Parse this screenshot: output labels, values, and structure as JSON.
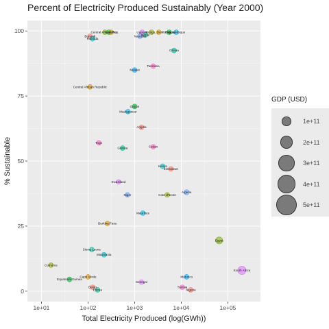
{
  "chart_data": {
    "type": "scatter",
    "title": "Percent of Electricity Produced Sustainably (Year 2000)",
    "xlabel": "Total Electricity Produced (log(GWh))",
    "ylabel": "% Sustainable",
    "x_scale": "log10",
    "xlim": [
      5,
      500000
    ],
    "ylim": [
      -4,
      104
    ],
    "x_ticks": [
      10,
      100,
      1000,
      10000,
      100000
    ],
    "x_tick_labels": [
      "1e+01",
      "1e+02",
      "1e+03",
      "1e+04",
      "1e+05"
    ],
    "y_ticks": [
      0,
      25,
      50,
      75,
      100
    ],
    "y_tick_labels": [
      "0",
      "25",
      "50",
      "75",
      "100"
    ],
    "legend": {
      "title": "GDP (USD)",
      "position": "right",
      "items": [
        {
          "label": "1e+11",
          "value": 100000000000
        },
        {
          "label": "2e+11",
          "value": 200000000000
        },
        {
          "label": "3e+11",
          "value": 300000000000
        },
        {
          "label": "4e+11",
          "value": 400000000000
        },
        {
          "label": "5e+11",
          "value": 500000000000
        }
      ]
    },
    "points": [
      {
        "label": "Burundi",
        "x": 110,
        "y": 98,
        "gdp": 1000000000,
        "color": "#F8766D"
      },
      {
        "label": "Rwanda",
        "x": 125,
        "y": 97,
        "gdp": 1800000000,
        "color": "#00BFC4"
      },
      {
        "label": "Central African Rep.",
        "x": 230,
        "y": 99.5,
        "gdp": 900000000,
        "color": "#7CAE00"
      },
      {
        "label": "",
        "x": 280,
        "y": 99.5,
        "gdp": 3000000000,
        "color": "#00BA38"
      },
      {
        "label": "Lesotho",
        "x": 310,
        "y": 99.5,
        "gdp": 1200000000,
        "color": "#D39200"
      },
      {
        "label": "Uganda",
        "x": 1450,
        "y": 99.5,
        "gdp": 6000000000,
        "color": "#DB72FB"
      },
      {
        "label": "Nepal",
        "x": 1700,
        "y": 98.5,
        "gdp": 5500000000,
        "color": "#00C19F"
      },
      {
        "label": "Namibia",
        "x": 1300,
        "y": 98,
        "gdp": 3500000000,
        "color": "#619CFF"
      },
      {
        "label": "",
        "x": 2300,
        "y": 99.5,
        "gdp": 30000000000,
        "color": "#93AA00"
      },
      {
        "label": "Congo, Dem. Rep.",
        "x": 3300,
        "y": 99.5,
        "gdp": 20000000000,
        "color": "#D39200"
      },
      {
        "label": "Paraguay",
        "x": 5500,
        "y": 99.5,
        "gdp": 8000000000,
        "color": "#00BA38"
      },
      {
        "label": "Mozambique",
        "x": 7800,
        "y": 99.5,
        "gdp": 6000000000,
        "color": "#00B9E3"
      },
      {
        "label": "Ghana",
        "x": 7000,
        "y": 92.5,
        "gdp": 25000000000,
        "color": "#00C19F"
      },
      {
        "label": "Tanzania",
        "x": 2500,
        "y": 86.5,
        "gdp": 15000000000,
        "color": "#FF61C3"
      },
      {
        "label": "Malawi",
        "x": 1000,
        "y": 85,
        "gdp": 2000000000,
        "color": "#00A9FF"
      },
      {
        "label": "Central African Republic",
        "x": 110,
        "y": 78.5,
        "gdp": 900000000,
        "color": "#D39200"
      },
      {
        "label": "Gabon",
        "x": 1000,
        "y": 71,
        "gdp": 5000000000,
        "color": "#00BA38"
      },
      {
        "label": "Madagascar",
        "x": 720,
        "y": 69,
        "gdp": 4000000000,
        "color": "#00B9E3"
      },
      {
        "label": "Angola",
        "x": 1400,
        "y": 63,
        "gdp": 9000000000,
        "color": "#F8766D"
      },
      {
        "label": "Togo",
        "x": 170,
        "y": 57,
        "gdp": 1500000000,
        "color": "#FF61C3"
      },
      {
        "label": "Guinea",
        "x": 550,
        "y": 55,
        "gdp": 3000000000,
        "color": "#00C08B"
      },
      {
        "label": "Sudan",
        "x": 2500,
        "y": 55.5,
        "gdp": 12000000000,
        "color": "#FF61C3"
      },
      {
        "label": "Kenya",
        "x": 4000,
        "y": 48,
        "gdp": 13000000000,
        "color": "#00BFC4"
      },
      {
        "label": "Zimbabwe",
        "x": 6000,
        "y": 47,
        "gdp": 7000000000,
        "color": "#F8766D"
      },
      {
        "label": "Swaziland",
        "x": 450,
        "y": 42,
        "gdp": 1500000000,
        "color": "#DB72FB"
      },
      {
        "label": "Niger",
        "x": 700,
        "y": 37,
        "gdp": 1800000000,
        "color": "#619CFF"
      },
      {
        "label": "Cote d'Ivoire",
        "x": 5000,
        "y": 37,
        "gdp": 11000000000,
        "color": "#93AA00"
      },
      {
        "label": "Algeria",
        "x": 13000,
        "y": 38,
        "gdp": 55000000000,
        "color": "#619CFF"
      },
      {
        "label": "Mauritius",
        "x": 1500,
        "y": 30,
        "gdp": 4500000000,
        "color": "#00B9E3"
      },
      {
        "label": "Burkina Faso",
        "x": 260,
        "y": 26,
        "gdp": 2600000000,
        "color": "#D39200"
      },
      {
        "label": "Egypt",
        "x": 65000,
        "y": 19.5,
        "gdp": 100000000000,
        "color": "#7CAE00"
      },
      {
        "label": "Sierra Leone",
        "x": 120,
        "y": 16,
        "gdp": 600000000,
        "color": "#00C19F"
      },
      {
        "label": "Mauritania",
        "x": 220,
        "y": 14,
        "gdp": 1300000000,
        "color": "#00BFC4"
      },
      {
        "label": "South Africa",
        "x": 200000,
        "y": 8,
        "gdp": 140000000000,
        "color": "#DB72FB"
      },
      {
        "label": "Comoros",
        "x": 16,
        "y": 10,
        "gdp": 200000000,
        "color": "#93AA00"
      },
      {
        "label": "Cape Verde",
        "x": 100,
        "y": 5.5,
        "gdp": 550000000,
        "color": "#D39200"
      },
      {
        "label": "Equatorial Guinea",
        "x": 40,
        "y": 4.5,
        "gdp": 1200000000,
        "color": "#00BA38"
      },
      {
        "label": "Morocco",
        "x": 13000,
        "y": 5.5,
        "gdp": 38000000000,
        "color": "#00A9FF"
      },
      {
        "label": "Senegal",
        "x": 1400,
        "y": 3.5,
        "gdp": 4700000000,
        "color": "#DB72FB"
      },
      {
        "label": "Benin",
        "x": 125,
        "y": 1.5,
        "gdp": 2300000000,
        "color": "#F8766D"
      },
      {
        "label": "Eritrea",
        "x": 160,
        "y": 0.5,
        "gdp": 700000000,
        "color": "#00C08B"
      },
      {
        "label": "Tunisia",
        "x": 10500,
        "y": 1.5,
        "gdp": 21000000000,
        "color": "#FF61C3"
      },
      {
        "label": "Nigeria",
        "x": 16000,
        "y": 0.5,
        "gdp": 46000000000,
        "color": "#F8766D"
      }
    ]
  }
}
